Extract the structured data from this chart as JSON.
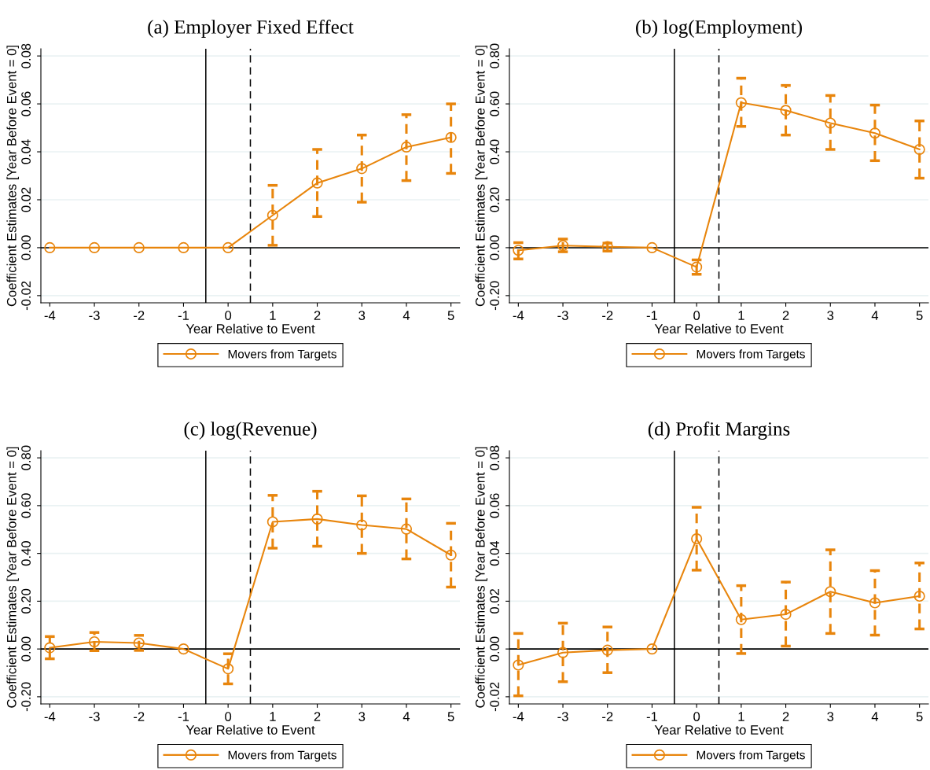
{
  "chart_data": [
    {
      "type": "line",
      "title": "(a) Employer Fixed Effect",
      "xlabel": "Year Relative to Event",
      "ylabel": "Coefficient Estimates [Year Before Event = 0]",
      "x": [
        -4,
        -3,
        -2,
        -1,
        0,
        1,
        2,
        3,
        4,
        5
      ],
      "series": [
        {
          "name": "Movers from Targets",
          "color": "#e8850c",
          "values": [
            0,
            0,
            0,
            0,
            0,
            0.0135,
            0.027,
            0.033,
            0.042,
            0.046
          ],
          "errors": [
            null,
            null,
            null,
            null,
            null,
            [
              0.001,
              0.026
            ],
            [
              0.013,
              0.041
            ],
            [
              0.019,
              0.047
            ],
            [
              0.028,
              0.0555
            ],
            [
              0.031,
              0.06
            ]
          ]
        }
      ],
      "xlim": [
        -4.2,
        5.2
      ],
      "xticks": [
        -4,
        -3,
        -2,
        -1,
        0,
        1,
        2,
        3,
        4,
        5
      ],
      "ylim": [
        -0.023,
        0.083
      ],
      "yticks": [
        {
          "value": -0.02,
          "label": "-0.02"
        },
        {
          "value": 0,
          "label": "0.00"
        },
        {
          "value": 0.02,
          "label": "0.02"
        },
        {
          "value": 0.04,
          "label": "0.04"
        },
        {
          "value": 0.06,
          "label": "0.06"
        },
        {
          "value": 0.08,
          "label": "0.08"
        }
      ],
      "ref_lines": [
        {
          "axis": "x",
          "value": -0.5,
          "color": "#000000",
          "line_style": "solid"
        },
        {
          "axis": "x",
          "value": 0.5,
          "color": "#000000",
          "line_style": "dashed"
        },
        {
          "axis": "y",
          "value": 0,
          "color": "#000000",
          "line_style": "solid"
        }
      ],
      "grid": "y",
      "legend": "bottom",
      "marker": "circle",
      "line_style": "solid"
    },
    {
      "type": "line",
      "title": "(b) log(Employment)",
      "xlabel": "Year Relative to Event",
      "ylabel": "Coefficient Estimates [Year Before Event = 0]",
      "x": [
        -4,
        -3,
        -2,
        -1,
        0,
        1,
        2,
        3,
        4,
        5
      ],
      "series": [
        {
          "name": "Movers from Targets",
          "color": "#e8850c",
          "values": [
            -0.011,
            0.009,
            0.004,
            0,
            -0.081,
            0.605,
            0.573,
            0.52,
            0.478,
            0.41
          ],
          "errors": [
            [
              -0.047,
              0.021
            ],
            [
              -0.017,
              0.036
            ],
            [
              -0.014,
              0.019
            ],
            null,
            [
              -0.111,
              -0.051
            ],
            [
              0.506,
              0.707
            ],
            [
              0.47,
              0.677
            ],
            [
              0.41,
              0.635
            ],
            [
              0.363,
              0.595
            ],
            [
              0.29,
              0.529
            ]
          ]
        }
      ],
      "xlim": [
        -4.2,
        5.2
      ],
      "xticks": [
        -4,
        -3,
        -2,
        -1,
        0,
        1,
        2,
        3,
        4,
        5
      ],
      "ylim": [
        -0.23,
        0.83
      ],
      "yticks": [
        {
          "value": -0.2,
          "label": "-0.20"
        },
        {
          "value": 0,
          "label": "0.00"
        },
        {
          "value": 0.2,
          "label": "0.20"
        },
        {
          "value": 0.4,
          "label": "0.40"
        },
        {
          "value": 0.6,
          "label": "0.60"
        },
        {
          "value": 0.8,
          "label": "0.80"
        }
      ],
      "ref_lines": [
        {
          "axis": "x",
          "value": -0.5,
          "color": "#000000",
          "line_style": "solid"
        },
        {
          "axis": "x",
          "value": 0.5,
          "color": "#000000",
          "line_style": "dashed"
        },
        {
          "axis": "y",
          "value": 0,
          "color": "#000000",
          "line_style": "solid"
        }
      ],
      "grid": "y",
      "legend": "bottom",
      "marker": "circle",
      "line_style": "solid"
    },
    {
      "type": "line",
      "title": "(c) log(Revenue)",
      "xlabel": "Year Relative to Event",
      "ylabel": "Coefficient Estimates [Year Before Event = 0]",
      "x": [
        -4,
        -3,
        -2,
        -1,
        0,
        1,
        2,
        3,
        4,
        5
      ],
      "series": [
        {
          "name": "Movers from Targets",
          "color": "#e8850c",
          "values": [
            0.005,
            0.03,
            0.025,
            0,
            -0.083,
            0.532,
            0.544,
            0.519,
            0.502,
            0.393
          ],
          "errors": [
            [
              -0.041,
              0.052
            ],
            [
              -0.007,
              0.069
            ],
            [
              -0.006,
              0.057
            ],
            null,
            [
              -0.146,
              -0.02
            ],
            [
              0.422,
              0.643
            ],
            [
              0.43,
              0.66
            ],
            [
              0.4,
              0.641
            ],
            [
              0.377,
              0.628
            ],
            [
              0.259,
              0.526
            ]
          ]
        }
      ],
      "xlim": [
        -4.2,
        5.2
      ],
      "xticks": [
        -4,
        -3,
        -2,
        -1,
        0,
        1,
        2,
        3,
        4,
        5
      ],
      "ylim": [
        -0.23,
        0.83
      ],
      "yticks": [
        {
          "value": -0.2,
          "label": "-0.20"
        },
        {
          "value": 0,
          "label": "0.00"
        },
        {
          "value": 0.2,
          "label": "0.20"
        },
        {
          "value": 0.4,
          "label": "0.40"
        },
        {
          "value": 0.6,
          "label": "0.60"
        },
        {
          "value": 0.8,
          "label": "0.80"
        }
      ],
      "ref_lines": [
        {
          "axis": "x",
          "value": -0.5,
          "color": "#000000",
          "line_style": "solid"
        },
        {
          "axis": "x",
          "value": 0.5,
          "color": "#000000",
          "line_style": "dashed"
        },
        {
          "axis": "y",
          "value": 0,
          "color": "#000000",
          "line_style": "solid"
        }
      ],
      "grid": "y",
      "legend": "bottom",
      "marker": "circle",
      "line_style": "solid"
    },
    {
      "type": "line",
      "title": "(d) Profit Margins",
      "xlabel": "Year Relative to Event",
      "ylabel": "Coefficient Estimates [Year Before Event = 0]",
      "x": [
        -4,
        -3,
        -2,
        -1,
        0,
        1,
        2,
        3,
        4,
        5
      ],
      "series": [
        {
          "name": "Movers from Targets",
          "color": "#e8850c",
          "values": [
            -0.0067,
            -0.0015,
            -0.0005,
            0,
            0.0461,
            0.0123,
            0.0145,
            0.024,
            0.0193,
            0.0221
          ],
          "errors": [
            [
              -0.0196,
              0.0065
            ],
            [
              -0.0137,
              0.0108
            ],
            [
              -0.0099,
              0.0092
            ],
            null,
            [
              0.033,
              0.0593
            ],
            [
              -0.0019,
              0.0265
            ],
            [
              0.0012,
              0.028
            ],
            [
              0.0065,
              0.0415
            ],
            [
              0.0058,
              0.0328
            ],
            [
              0.0084,
              0.036
            ]
          ]
        }
      ],
      "xlim": [
        -4.2,
        5.2
      ],
      "xticks": [
        -4,
        -3,
        -2,
        -1,
        0,
        1,
        2,
        3,
        4,
        5
      ],
      "ylim": [
        -0.023,
        0.083
      ],
      "yticks": [
        {
          "value": -0.02,
          "label": "-0.02"
        },
        {
          "value": 0,
          "label": "0.00"
        },
        {
          "value": 0.02,
          "label": "0.02"
        },
        {
          "value": 0.04,
          "label": "0.04"
        },
        {
          "value": 0.06,
          "label": "0.06"
        },
        {
          "value": 0.08,
          "label": "0.08"
        }
      ],
      "ref_lines": [
        {
          "axis": "x",
          "value": -0.5,
          "color": "#000000",
          "line_style": "solid"
        },
        {
          "axis": "x",
          "value": 0.5,
          "color": "#000000",
          "line_style": "dashed"
        },
        {
          "axis": "y",
          "value": 0,
          "color": "#000000",
          "line_style": "solid"
        }
      ],
      "grid": "y",
      "legend": "bottom",
      "marker": "circle",
      "line_style": "solid"
    }
  ]
}
